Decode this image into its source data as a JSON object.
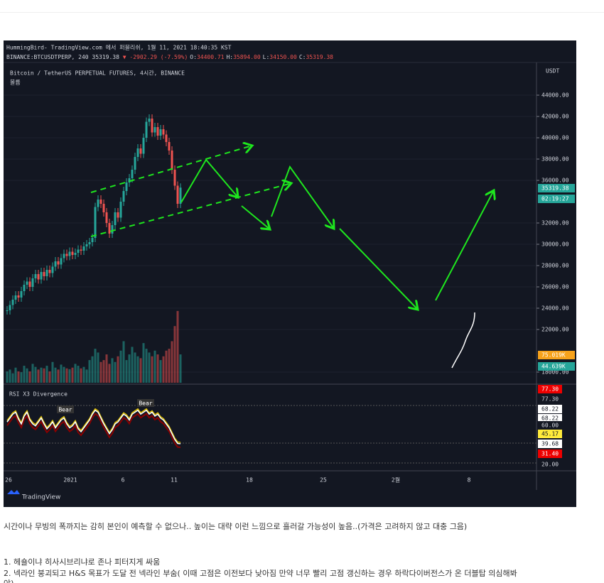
{
  "chart": {
    "publisher": "HummingBird- TradingView.com 에서 퍼블리쉬, 1월 11, 2021 18:40:35 KST",
    "symbol": "BINANCE:BTCUSDTPERP, 240 35319.38",
    "change": "▼ -2902.29 (-7.59%)",
    "ohlc": [
      {
        "k": "O:",
        "v": "34400.71"
      },
      {
        "k": "H:",
        "v": "35894.00"
      },
      {
        "k": "L:",
        "v": "34150.00"
      },
      {
        "k": "C:",
        "v": "35319.38"
      }
    ],
    "title": "Bitcoin / TetherUS PERPETUAL FUTURES, 4시간, BINANCE",
    "volume_label": "볼륨",
    "unit": "USDT",
    "ylim": [
      17000,
      47000
    ],
    "yticks": [
      {
        "value": 44000,
        "label": "44000.00"
      },
      {
        "value": 42000,
        "label": "42000.00"
      },
      {
        "value": 40000,
        "label": "40000.00"
      },
      {
        "value": 38000,
        "label": "38000.00"
      },
      {
        "value": 36000,
        "label": "36000.00"
      },
      {
        "value": 32000,
        "label": "32000.00"
      },
      {
        "value": 30000,
        "label": "30000.00"
      },
      {
        "value": 28000,
        "label": "28000.00"
      },
      {
        "value": 26000,
        "label": "26000.00"
      },
      {
        "value": 24000,
        "label": "24000.00"
      },
      {
        "value": 22000,
        "label": "22000.00"
      },
      {
        "value": 18000,
        "label": "18000.00"
      }
    ],
    "closes": [
      23800,
      24300,
      24800,
      25200,
      25000,
      25600,
      26200,
      26500,
      26000,
      26800,
      27200,
      26700,
      27400,
      27000,
      27600,
      27300,
      27900,
      28400,
      28100,
      28700,
      29100,
      28900,
      29300,
      29000,
      29200,
      29500,
      29400,
      29800,
      30000,
      30200,
      30600,
      33500,
      34200,
      33800,
      33000,
      32000,
      31000,
      31800,
      33000,
      32500,
      34000,
      35000,
      35800,
      36200,
      37000,
      38200,
      39000,
      38500,
      40000,
      41500,
      41800,
      40500,
      41000,
      40200,
      40800,
      40300,
      39600,
      38800,
      37000,
      35500,
      33800,
      35319
    ],
    "volume_ylim": [
      0,
      250
    ],
    "volume": [
      30,
      35,
      25,
      40,
      30,
      28,
      45,
      38,
      30,
      50,
      42,
      35,
      40,
      38,
      45,
      30,
      55,
      40,
      35,
      48,
      42,
      38,
      36,
      40,
      50,
      45,
      38,
      42,
      35,
      60,
      70,
      90,
      80,
      55,
      60,
      75,
      50,
      65,
      55,
      70,
      85,
      110,
      60,
      75,
      95,
      80,
      70,
      65,
      105,
      90,
      80,
      70,
      85,
      75,
      60,
      70,
      85,
      90,
      110,
      150,
      190,
      75
    ],
    "price_badges": [
      {
        "text": "35319.38",
        "color": "#26a69a"
      },
      {
        "text": "02:19:27",
        "color": "#26a69a"
      },
      {
        "text": "75.019K",
        "color": "#f7a21b"
      },
      {
        "text": "44.639K",
        "color": "#26a69a"
      }
    ],
    "rsi_title": "RSI X3 Divergence",
    "bear_labels": [
      "Bear",
      "Bear"
    ],
    "rsi_ylim": [
      12,
      100
    ],
    "rsi": [
      62,
      66,
      70,
      72,
      65,
      60,
      68,
      72,
      64,
      60,
      58,
      62,
      66,
      60,
      55,
      58,
      62,
      56,
      60,
      64,
      66,
      60,
      56,
      58,
      62,
      55,
      52,
      56,
      60,
      64,
      70,
      74,
      72,
      66,
      60,
      55,
      50,
      54,
      60,
      62,
      66,
      70,
      68,
      64,
      70,
      72,
      74,
      70,
      72,
      74,
      70,
      72,
      68,
      70,
      66,
      64,
      60,
      56,
      50,
      44,
      40,
      39.68
    ],
    "rsi_badges": [
      {
        "text": "77.30",
        "color": "#e00"
      },
      {
        "text": "77.30",
        "color": "#131722"
      },
      {
        "text": "68.22",
        "color": "#fff"
      },
      {
        "text": "68.22",
        "color": "#fff"
      },
      {
        "text": "60.00",
        "color": "#131722"
      },
      {
        "text": "45.17",
        "color": "#ffeb3b"
      },
      {
        "text": "39.68",
        "color": "#fff"
      },
      {
        "text": "31.40",
        "color": "#e00"
      },
      {
        "text": "20.00",
        "color": "#131722"
      }
    ],
    "time_labels": [
      "26",
      "2021",
      "6",
      "11",
      "18",
      "25",
      "2월",
      "8"
    ],
    "brand": "TradingView"
  },
  "post": {
    "paragraph": "시간이나 무빙의 폭까지는 감히 본인이 예측할 수 없으나.. 높이는 대략 이런 느낌으로 흘러갈 가능성이 높음..(가격은 고려하지 않고 대충 그음)",
    "list": [
      "1. 헤숄이냐 히사시브리냐로 존나 피터지게 싸움",
      "2. 넥라인 붕괴되고 H&S 목표가 도달 전 넥라인 부숨( 이때 고점은 이전보다 낮아짐 만약 너무 빨리 고점 갱신하는 경우 하락다이버전스가 온 더블탑 의심해봐",
      "야)"
    ]
  }
}
